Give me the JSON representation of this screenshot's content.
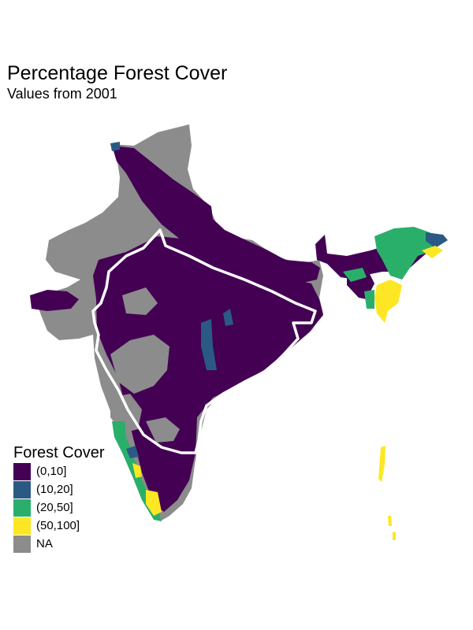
{
  "title": "Percentage Forest Cover",
  "subtitle": "Values from 2001",
  "legend": {
    "title": "Forest Cover",
    "items": [
      {
        "label": "(0,10]",
        "color": "#440154"
      },
      {
        "label": "(10,20]",
        "color": "#2a5a83"
      },
      {
        "label": "(20,50]",
        "color": "#2aaf6b"
      },
      {
        "label": "(50,100]",
        "color": "#fde724"
      },
      {
        "label": "NA",
        "color": "#8c8c8c"
      }
    ]
  },
  "colors": {
    "na": "#8c8c8c",
    "low": "#440154",
    "mid_low": "#2a5a83",
    "mid_high": "#2aaf6b",
    "high": "#fde724",
    "outline": "#ffffff"
  }
}
